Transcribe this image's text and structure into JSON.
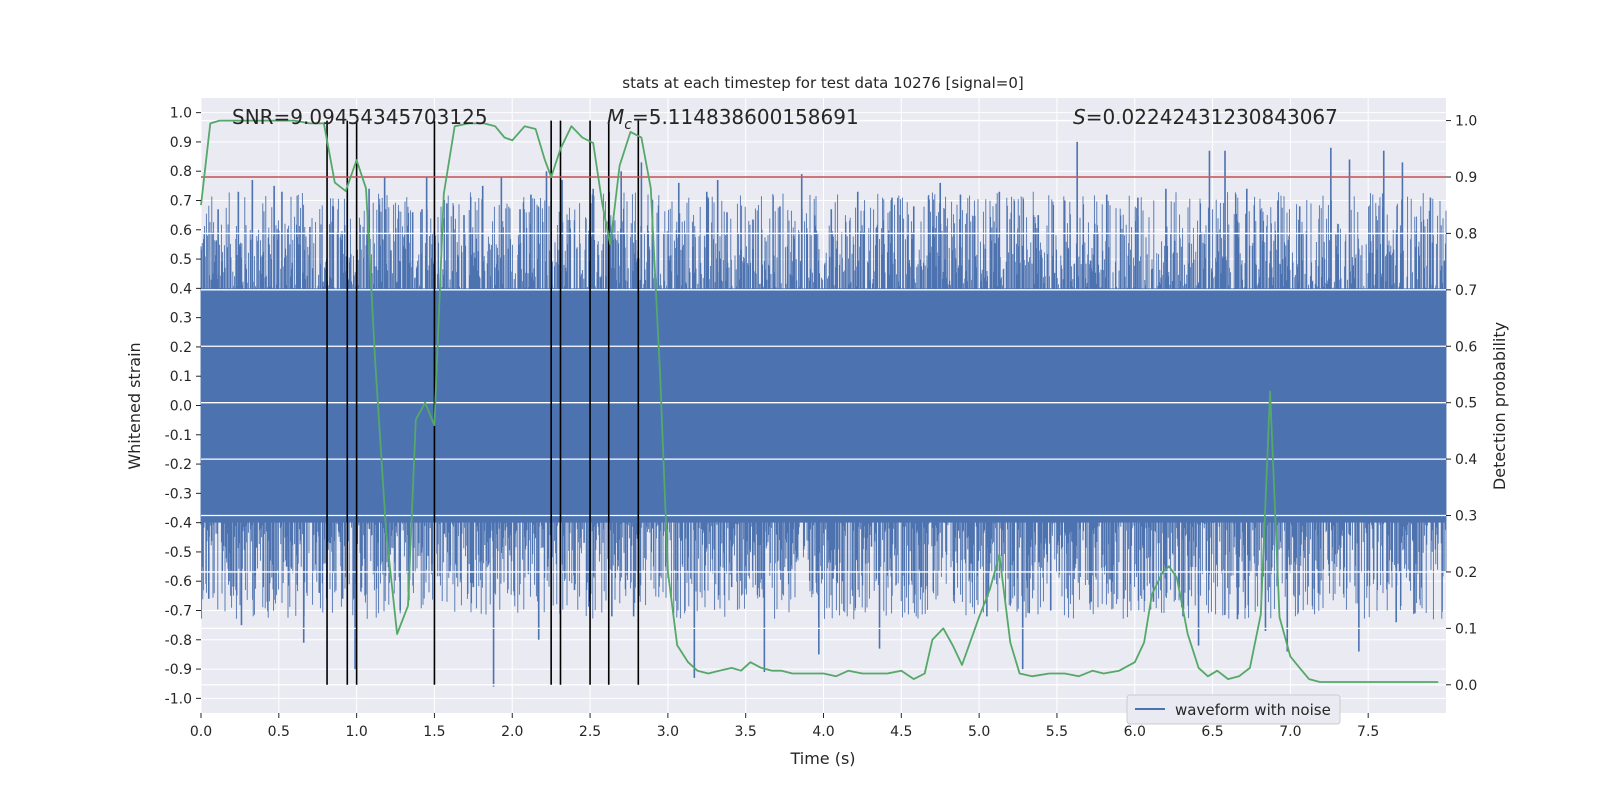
{
  "chart_data": {
    "type": "line",
    "title": "stats at each timestep for test data 10276 [signal=0]",
    "xlabel": "Time (s)",
    "ylabel_left": "Whitened strain",
    "ylabel_right": "Detection probability",
    "xlim": [
      0.0,
      8.0
    ],
    "ylim_left": [
      -1.05,
      1.05
    ],
    "ylim_right": [
      -0.05,
      1.04
    ],
    "x_ticks": [
      "0.0",
      "0.5",
      "1.0",
      "1.5",
      "2.0",
      "2.5",
      "3.0",
      "3.5",
      "4.0",
      "4.5",
      "5.0",
      "5.5",
      "6.0",
      "6.5",
      "7.0",
      "7.5"
    ],
    "y_ticks_left": [
      "1.0",
      "0.9",
      "0.8",
      "0.7",
      "0.6",
      "0.5",
      "0.4",
      "0.3",
      "0.2",
      "0.1",
      "0.0",
      "-0.1",
      "-0.2",
      "-0.3",
      "-0.4",
      "-0.5",
      "-0.6",
      "-0.7",
      "-0.8",
      "-0.9",
      "-1.0"
    ],
    "y_ticks_right": [
      "1.0",
      "0.9",
      "0.8",
      "0.7",
      "0.6",
      "0.5",
      "0.4",
      "0.3",
      "0.2",
      "0.1",
      "0.0"
    ],
    "grid": true,
    "legend": {
      "entries": [
        "waveform with noise"
      ],
      "placement": "lower-right"
    },
    "annotations": {
      "snr": "SNR=9.09454345703125",
      "mc_symbol": "M",
      "mc_sub": "c",
      "mc_value": "=5.114838600158691",
      "s_symbol": "S",
      "s_value": "=0.022424312308430​67"
    },
    "threshold": {
      "value_right": 0.9,
      "color": "#c44e52"
    },
    "detection_times": [
      0.81,
      0.94,
      1.0,
      1.5,
      2.25,
      2.31,
      2.5,
      2.62,
      2.81
    ],
    "waveform_noise": {
      "name": "waveform with noise",
      "color": "#4c72b0",
      "core_amplitude": 0.4,
      "spikes": [
        {
          "x": 0.02,
          "y": 0.56
        },
        {
          "x": 0.05,
          "y": -0.66
        },
        {
          "x": 0.11,
          "y": 0.67
        },
        {
          "x": 0.18,
          "y": -0.6
        },
        {
          "x": 0.24,
          "y": 0.73
        },
        {
          "x": 0.26,
          "y": -0.75
        },
        {
          "x": 0.33,
          "y": 0.77
        },
        {
          "x": 0.4,
          "y": -0.62
        },
        {
          "x": 0.47,
          "y": 0.75
        },
        {
          "x": 0.52,
          "y": 0.73
        },
        {
          "x": 0.55,
          "y": -0.55
        },
        {
          "x": 0.66,
          "y": -0.81
        },
        {
          "x": 0.7,
          "y": 0.61
        },
        {
          "x": 0.76,
          "y": -0.64
        },
        {
          "x": 0.85,
          "y": 0.68
        },
        {
          "x": 0.91,
          "y": -0.66
        },
        {
          "x": 0.99,
          "y": -0.9
        },
        {
          "x": 1.08,
          "y": 0.74
        },
        {
          "x": 1.18,
          "y": 0.78
        },
        {
          "x": 1.22,
          "y": 0.53
        },
        {
          "x": 1.28,
          "y": -0.7
        },
        {
          "x": 1.36,
          "y": 0.66
        },
        {
          "x": 1.42,
          "y": 0.67
        },
        {
          "x": 1.45,
          "y": 0.78
        },
        {
          "x": 1.58,
          "y": 0.69
        },
        {
          "x": 1.6,
          "y": -0.57
        },
        {
          "x": 1.69,
          "y": 0.65
        },
        {
          "x": 1.75,
          "y": -0.62
        },
        {
          "x": 1.81,
          "y": 0.75
        },
        {
          "x": 1.88,
          "y": -0.96
        },
        {
          "x": 1.93,
          "y": 0.78
        },
        {
          "x": 2.05,
          "y": 0.67
        },
        {
          "x": 2.12,
          "y": 0.72
        },
        {
          "x": 2.17,
          "y": -0.8
        },
        {
          "x": 2.22,
          "y": 0.8
        },
        {
          "x": 2.32,
          "y": 0.77
        },
        {
          "x": 2.4,
          "y": -0.63
        },
        {
          "x": 2.52,
          "y": 0.74
        },
        {
          "x": 2.64,
          "y": -0.72
        },
        {
          "x": 2.7,
          "y": 0.8
        },
        {
          "x": 2.78,
          "y": -0.72
        },
        {
          "x": 2.83,
          "y": 0.83
        },
        {
          "x": 2.9,
          "y": 0.65
        },
        {
          "x": 3.07,
          "y": 0.76
        },
        {
          "x": 3.17,
          "y": -0.93
        },
        {
          "x": 3.25,
          "y": 0.73
        },
        {
          "x": 3.32,
          "y": 0.77
        },
        {
          "x": 3.38,
          "y": 0.66
        },
        {
          "x": 3.41,
          "y": -0.62
        },
        {
          "x": 3.62,
          "y": -0.91
        },
        {
          "x": 3.72,
          "y": 0.68
        },
        {
          "x": 3.86,
          "y": 0.79
        },
        {
          "x": 3.97,
          "y": -0.85
        },
        {
          "x": 4.05,
          "y": 0.67
        },
        {
          "x": 4.12,
          "y": -0.6
        },
        {
          "x": 4.22,
          "y": 0.73
        },
        {
          "x": 4.36,
          "y": -0.83
        },
        {
          "x": 4.44,
          "y": 0.71
        },
        {
          "x": 4.58,
          "y": 0.68
        },
        {
          "x": 4.63,
          "y": -0.62
        },
        {
          "x": 4.75,
          "y": 0.76
        },
        {
          "x": 4.88,
          "y": 0.72
        },
        {
          "x": 4.95,
          "y": -0.54
        },
        {
          "x": 5.05,
          "y": -0.72
        },
        {
          "x": 5.13,
          "y": 0.73
        },
        {
          "x": 5.28,
          "y": -0.9
        },
        {
          "x": 5.38,
          "y": 0.65
        },
        {
          "x": 5.46,
          "y": -0.7
        },
        {
          "x": 5.55,
          "y": 0.7
        },
        {
          "x": 5.63,
          "y": 0.9
        },
        {
          "x": 5.72,
          "y": -0.67
        },
        {
          "x": 5.82,
          "y": 0.72
        },
        {
          "x": 5.93,
          "y": -0.66
        },
        {
          "x": 6.02,
          "y": 0.71
        },
        {
          "x": 6.12,
          "y": -0.67
        },
        {
          "x": 6.2,
          "y": 0.74
        },
        {
          "x": 6.31,
          "y": -0.72
        },
        {
          "x": 6.41,
          "y": -0.82
        },
        {
          "x": 6.48,
          "y": 0.87
        },
        {
          "x": 6.58,
          "y": 0.87
        },
        {
          "x": 6.66,
          "y": -0.73
        },
        {
          "x": 6.72,
          "y": 0.74
        },
        {
          "x": 6.84,
          "y": -0.77
        },
        {
          "x": 6.92,
          "y": 0.7
        },
        {
          "x": 6.98,
          "y": -0.84
        },
        {
          "x": 7.06,
          "y": 0.68
        },
        {
          "x": 7.18,
          "y": -0.64
        },
        {
          "x": 7.26,
          "y": 0.88
        },
        {
          "x": 7.38,
          "y": 0.84
        },
        {
          "x": 7.44,
          "y": -0.84
        },
        {
          "x": 7.6,
          "y": 0.87
        },
        {
          "x": 7.68,
          "y": -0.74
        },
        {
          "x": 7.72,
          "y": 0.83
        },
        {
          "x": 7.8,
          "y": -0.71
        },
        {
          "x": 7.9,
          "y": 0.71
        }
      ]
    },
    "detection_probability": {
      "color": "#55a868",
      "x": [
        0.0,
        0.06,
        0.12,
        0.2,
        0.3,
        0.4,
        0.5,
        0.6,
        0.7,
        0.79,
        0.86,
        0.93,
        1.0,
        1.06,
        1.12,
        1.19,
        1.26,
        1.33,
        1.38,
        1.44,
        1.5,
        1.56,
        1.63,
        1.72,
        1.82,
        1.89,
        1.95,
        2.0,
        2.08,
        2.15,
        2.21,
        2.25,
        2.31,
        2.38,
        2.45,
        2.52,
        2.58,
        2.63,
        2.69,
        2.76,
        2.83,
        2.89,
        2.95,
        3.0,
        3.06,
        3.13,
        3.19,
        3.26,
        3.33,
        3.41,
        3.47,
        3.53,
        3.6,
        3.67,
        3.73,
        3.8,
        3.87,
        3.93,
        4.0,
        4.08,
        4.16,
        4.25,
        4.33,
        4.41,
        4.5,
        4.58,
        4.65,
        4.7,
        4.77,
        4.83,
        4.89,
        5.0,
        5.07,
        5.13,
        5.2,
        5.26,
        5.34,
        5.45,
        5.55,
        5.64,
        5.73,
        5.8,
        5.9,
        6.0,
        6.06,
        6.11,
        6.18,
        6.22,
        6.27,
        6.34,
        6.41,
        6.47,
        6.53,
        6.6,
        6.67,
        6.74,
        6.81,
        6.87,
        6.93,
        7.0,
        7.06,
        7.12,
        7.19,
        7.3,
        7.42,
        7.55,
        7.67,
        7.8,
        7.87,
        7.95
      ],
      "y": [
        0.85,
        0.995,
        1.0,
        1.0,
        1.0,
        1.0,
        1.0,
        1.0,
        0.995,
        0.995,
        0.89,
        0.875,
        0.93,
        0.88,
        0.57,
        0.27,
        0.09,
        0.14,
        0.47,
        0.5,
        0.46,
        0.87,
        0.99,
        0.995,
        0.995,
        0.99,
        0.97,
        0.965,
        0.99,
        0.985,
        0.93,
        0.9,
        0.95,
        0.99,
        0.97,
        0.96,
        0.85,
        0.78,
        0.92,
        0.98,
        0.97,
        0.88,
        0.55,
        0.2,
        0.07,
        0.04,
        0.025,
        0.02,
        0.025,
        0.03,
        0.025,
        0.04,
        0.03,
        0.025,
        0.025,
        0.02,
        0.02,
        0.02,
        0.02,
        0.015,
        0.025,
        0.02,
        0.02,
        0.02,
        0.025,
        0.01,
        0.02,
        0.08,
        0.1,
        0.07,
        0.035,
        0.12,
        0.17,
        0.23,
        0.075,
        0.02,
        0.015,
        0.02,
        0.02,
        0.015,
        0.025,
        0.02,
        0.025,
        0.04,
        0.075,
        0.16,
        0.2,
        0.21,
        0.19,
        0.09,
        0.03,
        0.015,
        0.025,
        0.01,
        0.015,
        0.03,
        0.125,
        0.52,
        0.12,
        0.05,
        0.03,
        0.01,
        0.005,
        0.005,
        0.005,
        0.005,
        0.005,
        0.005,
        0.005,
        0.005
      ]
    }
  }
}
